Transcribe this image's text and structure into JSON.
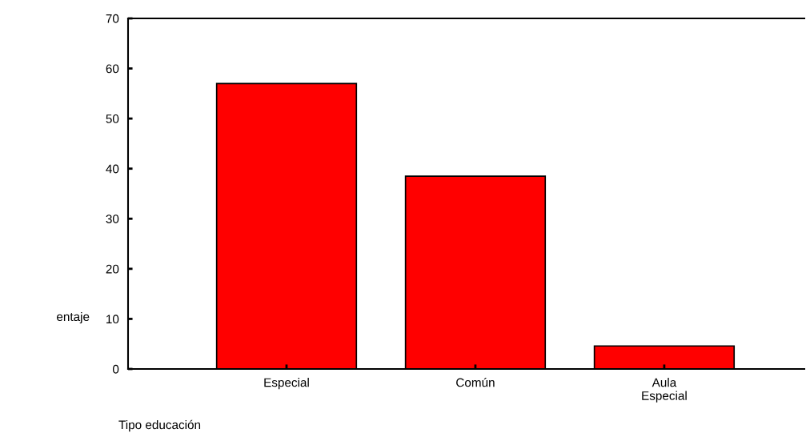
{
  "chart_data": {
    "type": "bar",
    "xlabel": "Tipo educación",
    "ylabel": "entaje",
    "categories": [
      "Especial",
      "Común",
      "Aula\nEspecial"
    ],
    "values": [
      57,
      38.5,
      4.6
    ],
    "color": "#ff0000",
    "ylim": [
      0,
      70
    ],
    "yticks": [
      0,
      10,
      20,
      30,
      40,
      50,
      60,
      70
    ],
    "grid": false,
    "legend": false
  }
}
